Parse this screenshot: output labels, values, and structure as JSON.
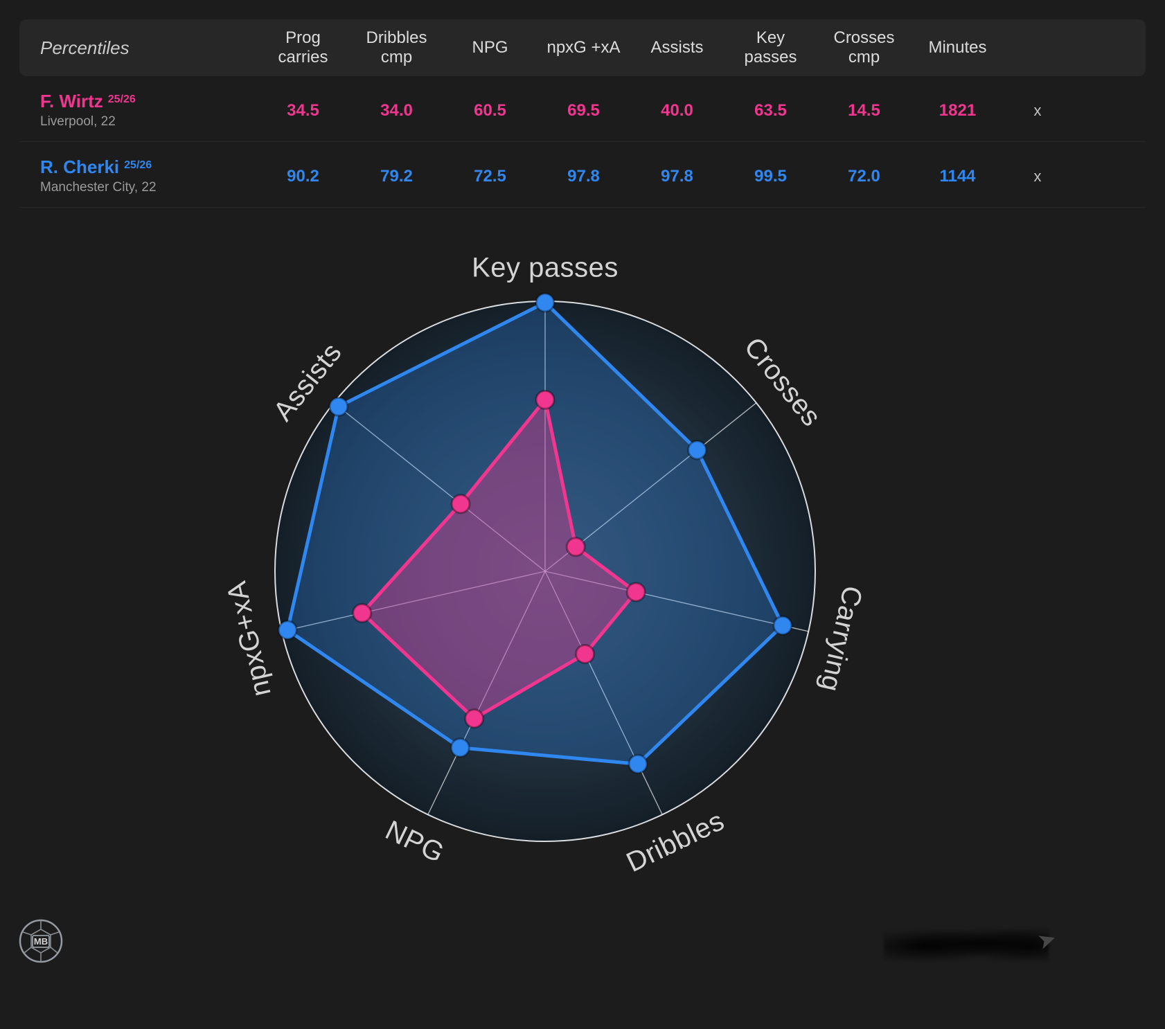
{
  "colors": {
    "background": "#1c1c1c",
    "table_header_bg": "#272727",
    "pink": "#f0368e",
    "blue": "#3087f0",
    "axis_label_gray": "#d4d4d4",
    "muted_gray": "#9b9b9b"
  },
  "table": {
    "title": "Percentiles",
    "columns": [
      "Prog carries",
      "Dribbles cmp",
      "NPG",
      "npxG +xA",
      "Assists",
      "Key passes",
      "Crosses cmp",
      "Minutes"
    ],
    "rows": [
      {
        "player": "F. Wirtz",
        "season": "25/26",
        "club": "Liverpool, 22",
        "color": "#f0368e",
        "values": [
          "34.5",
          "34.0",
          "60.5",
          "69.5",
          "40.0",
          "63.5",
          "14.5",
          "1821"
        ],
        "remove": "x"
      },
      {
        "player": "R. Cherki",
        "season": "25/26",
        "club": "Manchester City, 22",
        "color": "#3087f0",
        "values": [
          "90.2",
          "79.2",
          "72.5",
          "97.8",
          "97.8",
          "99.5",
          "72.0",
          "1144"
        ],
        "remove": "x"
      }
    ]
  },
  "chart_data": {
    "type": "radar",
    "axes": [
      "Key passes",
      "Crosses",
      "Carrying",
      "Dribbles",
      "NPG",
      "npxG+xA",
      "Assists"
    ],
    "range": [
      0,
      100
    ],
    "grid": false,
    "series": [
      {
        "name": "R. Cherki",
        "color": "#3087f0",
        "values": [
          99.5,
          72.0,
          90.2,
          79.2,
          72.5,
          97.8,
          97.8
        ]
      },
      {
        "name": "F. Wirtz",
        "color": "#f0368e",
        "values": [
          63.5,
          14.5,
          34.5,
          34.0,
          60.5,
          69.5,
          40.0
        ]
      }
    ]
  },
  "footer": {
    "logo_text": "MB"
  },
  "icons": {
    "arrow_mark": "➤"
  }
}
